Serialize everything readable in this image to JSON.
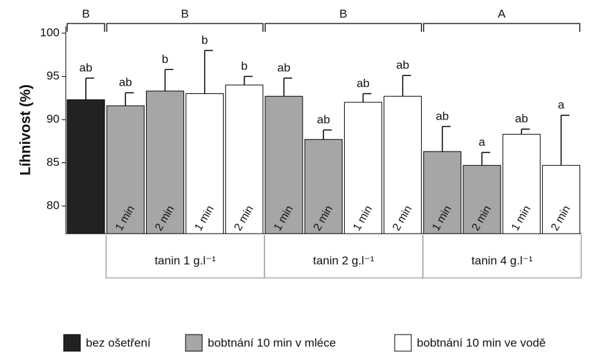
{
  "chart_data": {
    "type": "bar",
    "ylabel": "Líhnivost (%)",
    "ylim": [
      76.8,
      100.8
    ],
    "yticks": [
      80,
      85,
      90,
      95,
      100
    ],
    "categories": [
      null,
      "1 min",
      "2 min",
      "1 min",
      "2 min",
      "1 min",
      "2 min",
      "1 min",
      "2 min",
      "1 min",
      "2 min",
      "1 min",
      "2 min"
    ],
    "values": [
      92.3,
      91.6,
      93.3,
      93.0,
      94.0,
      92.7,
      87.7,
      92.0,
      92.7,
      86.3,
      84.7,
      88.3,
      84.7
    ],
    "errors": [
      2.5,
      1.5,
      2.5,
      5.0,
      1.0,
      2.1,
      1.1,
      1.0,
      2.4,
      2.9,
      1.5,
      0.6,
      5.8
    ],
    "letters": [
      "ab",
      "ab",
      "b",
      "b",
      "b",
      "ab",
      "ab",
      "ab",
      "ab",
      "ab",
      "a",
      "ab",
      "a"
    ],
    "colors": [
      "#222222",
      "#a6a6a6",
      "#a6a6a6",
      "#ffffff",
      "#ffffff",
      "#a6a6a6",
      "#a6a6a6",
      "#ffffff",
      "#ffffff",
      "#a6a6a6",
      "#a6a6a6",
      "#ffffff",
      "#ffffff"
    ],
    "top_groups": [
      {
        "label": "B",
        "from": 0,
        "to": 0
      },
      {
        "label": "B",
        "from": 1,
        "to": 4
      },
      {
        "label": "B",
        "from": 5,
        "to": 8
      },
      {
        "label": "A",
        "from": 9,
        "to": 12
      }
    ],
    "bottom_groups": [
      {
        "label": "tanin 1 g.l⁻¹",
        "from": 1,
        "to": 4
      },
      {
        "label": "tanin 2 g.l⁻¹",
        "from": 5,
        "to": 8
      },
      {
        "label": "tanin 4 g.l⁻¹",
        "from": 9,
        "to": 12
      }
    ],
    "legend": [
      {
        "name": "bez ošetření",
        "color": "#222222"
      },
      {
        "name": "bobtnání 10 min v mléce",
        "color": "#a6a6a6"
      },
      {
        "name": "bobtnání 10 min ve vodě",
        "color": "#ffffff"
      }
    ]
  }
}
